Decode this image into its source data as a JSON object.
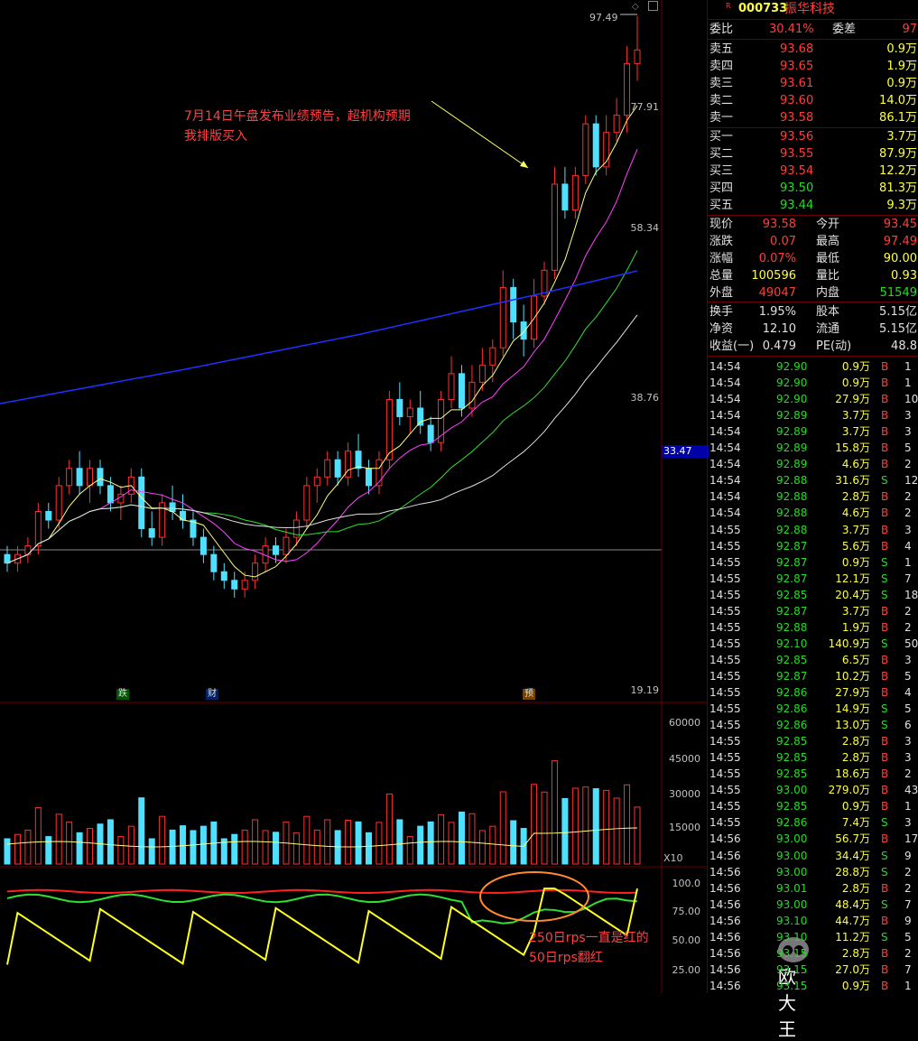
{
  "stock": {
    "code": "000733",
    "name": "振华科技",
    "tag": "R"
  },
  "price_axis": [
    "77.91",
    "58.34",
    "38.76",
    "19.19"
  ],
  "current_marker": "33.47",
  "high_label": "97.49",
  "volume_axis": [
    "60000",
    "45000",
    "30000",
    "15000"
  ],
  "volume_unit": "X10",
  "rps_axis": [
    "100.0",
    "75.00",
    "50.00",
    "25.00"
  ],
  "annotations": {
    "buy_line1": "7月14日午盘发布业绩预告，超机构预期",
    "buy_line2": "我排版买入",
    "rps_line1": "250日rps一直是红的",
    "rps_line2": "50日rps翻红"
  },
  "event_tags": [
    "跌",
    "财",
    "预"
  ],
  "watermark": "欧大王",
  "quote": {
    "wb_label": "委比",
    "wb_val": "30.41%",
    "wc_label": "委差",
    "wc_val": "97",
    "asks": [
      {
        "label": "卖五",
        "price": "93.68",
        "vol": "0.9万"
      },
      {
        "label": "卖四",
        "price": "93.65",
        "vol": "1.9万"
      },
      {
        "label": "卖三",
        "price": "93.61",
        "vol": "0.9万"
      },
      {
        "label": "卖二",
        "price": "93.60",
        "vol": "14.0万"
      },
      {
        "label": "卖一",
        "price": "93.58",
        "vol": "86.1万"
      }
    ],
    "bids": [
      {
        "label": "买一",
        "price": "93.56",
        "vol": "3.7万"
      },
      {
        "label": "买二",
        "price": "93.55",
        "vol": "87.9万"
      },
      {
        "label": "买三",
        "price": "93.54",
        "vol": "12.2万"
      },
      {
        "label": "买四",
        "price": "93.50",
        "vol": "81.3万"
      },
      {
        "label": "买五",
        "price": "93.44",
        "vol": "9.3万"
      }
    ],
    "stats": [
      {
        "l1": "现价",
        "v1": "93.58",
        "c1": "red",
        "l2": "今开",
        "v2": "93.45",
        "c2": "red"
      },
      {
        "l1": "涨跌",
        "v1": "0.07",
        "c1": "red",
        "l2": "最高",
        "v2": "97.49",
        "c2": "red"
      },
      {
        "l1": "涨幅",
        "v1": "0.07%",
        "c1": "red",
        "l2": "最低",
        "v2": "90.00",
        "c2": "yel"
      },
      {
        "l1": "总量",
        "v1": "100596",
        "c1": "yel",
        "l2": "量比",
        "v2": "0.93",
        "c2": "yel"
      },
      {
        "l1": "外盘",
        "v1": "49047",
        "c1": "red",
        "l2": "内盘",
        "v2": "51549",
        "c2": "grn"
      }
    ],
    "fin": [
      {
        "l1": "换手",
        "v1": "1.95%",
        "l2": "股本",
        "v2": "5.15亿"
      },
      {
        "l1": "净资",
        "v1": "12.10",
        "l2": "流通",
        "v2": "5.15亿"
      },
      {
        "l1": "收益(一)",
        "v1": "0.479",
        "l2": "PE(动)",
        "v2": "48.8"
      }
    ]
  },
  "ticks": [
    [
      "14:54",
      "92.90",
      "0.9万",
      "B",
      "1"
    ],
    [
      "14:54",
      "92.90",
      "0.9万",
      "B",
      "1"
    ],
    [
      "14:54",
      "92.90",
      "27.9万",
      "B",
      "10"
    ],
    [
      "14:54",
      "92.89",
      "3.7万",
      "B",
      "3"
    ],
    [
      "14:54",
      "92.89",
      "3.7万",
      "B",
      "3"
    ],
    [
      "14:54",
      "92.89",
      "15.8万",
      "B",
      "5"
    ],
    [
      "14:54",
      "92.89",
      "4.6万",
      "B",
      "2"
    ],
    [
      "14:54",
      "92.88",
      "31.6万",
      "S",
      "12"
    ],
    [
      "14:54",
      "92.88",
      "2.8万",
      "B",
      "2"
    ],
    [
      "14:54",
      "92.88",
      "4.6万",
      "B",
      "2"
    ],
    [
      "14:55",
      "92.88",
      "3.7万",
      "B",
      "3"
    ],
    [
      "14:55",
      "92.87",
      "5.6万",
      "B",
      "4"
    ],
    [
      "14:55",
      "92.87",
      "0.9万",
      "S",
      "1"
    ],
    [
      "14:55",
      "92.87",
      "12.1万",
      "S",
      "7"
    ],
    [
      "14:55",
      "92.85",
      "20.4万",
      "S",
      "18"
    ],
    [
      "14:55",
      "92.87",
      "3.7万",
      "B",
      "2"
    ],
    [
      "14:55",
      "92.88",
      "1.9万",
      "B",
      "2"
    ],
    [
      "14:55",
      "92.10",
      "140.9万",
      "S",
      "50"
    ],
    [
      "14:55",
      "92.85",
      "6.5万",
      "B",
      "3"
    ],
    [
      "14:55",
      "92.87",
      "10.2万",
      "B",
      "5"
    ],
    [
      "14:55",
      "92.86",
      "27.9万",
      "B",
      "4"
    ],
    [
      "14:55",
      "92.86",
      "14.9万",
      "S",
      "5"
    ],
    [
      "14:55",
      "92.86",
      "13.0万",
      "S",
      "6"
    ],
    [
      "14:55",
      "92.85",
      "2.8万",
      "B",
      "3"
    ],
    [
      "14:55",
      "92.85",
      "2.8万",
      "B",
      "3"
    ],
    [
      "14:55",
      "92.85",
      "18.6万",
      "B",
      "2"
    ],
    [
      "14:55",
      "93.00",
      "279.0万",
      "B",
      "43"
    ],
    [
      "14:55",
      "92.85",
      "0.9万",
      "B",
      "1"
    ],
    [
      "14:55",
      "92.86",
      "7.4万",
      "S",
      "3"
    ],
    [
      "14:56",
      "93.00",
      "56.7万",
      "B",
      "17"
    ],
    [
      "14:56",
      "93.00",
      "34.4万",
      "S",
      "9"
    ],
    [
      "14:56",
      "93.00",
      "28.8万",
      "S",
      "2"
    ],
    [
      "14:56",
      "93.01",
      "2.8万",
      "B",
      "2"
    ],
    [
      "14:56",
      "93.00",
      "48.4万",
      "S",
      "7"
    ],
    [
      "14:56",
      "93.10",
      "44.7万",
      "B",
      "9"
    ],
    [
      "14:56",
      "93.10",
      "11.2万",
      "S",
      "5"
    ],
    [
      "14:56",
      "93.15",
      "2.8万",
      "B",
      "2"
    ],
    [
      "14:56",
      "93.15",
      "27.0万",
      "B",
      "7"
    ],
    [
      "14:56",
      "93.15",
      "0.9万",
      "B",
      "1"
    ]
  ],
  "chart_data": {
    "type": "candlestick",
    "price_range": [
      19.19,
      97.49
    ],
    "ohlc": [
      [
        35,
        36,
        33,
        34
      ],
      [
        34,
        36,
        33,
        35
      ],
      [
        35,
        37,
        34,
        36
      ],
      [
        36,
        41,
        35,
        40
      ],
      [
        40,
        41,
        38,
        39
      ],
      [
        39,
        44,
        38,
        43
      ],
      [
        43,
        46,
        42,
        45
      ],
      [
        45,
        47,
        42,
        43
      ],
      [
        43,
        46,
        41,
        45
      ],
      [
        45,
        46,
        42,
        43
      ],
      [
        43,
        44,
        40,
        41
      ],
      [
        41,
        43,
        39,
        42
      ],
      [
        42,
        45,
        41,
        44
      ],
      [
        44,
        45,
        37,
        38
      ],
      [
        38,
        40,
        36,
        37
      ],
      [
        37,
        42,
        36,
        41
      ],
      [
        41,
        43,
        39,
        40
      ],
      [
        40,
        42,
        38,
        39
      ],
      [
        39,
        40,
        36,
        37
      ],
      [
        37,
        38,
        34,
        35
      ],
      [
        35,
        36,
        32,
        33
      ],
      [
        33,
        34,
        31,
        32
      ],
      [
        32,
        33,
        30,
        31
      ],
      [
        31,
        33,
        30,
        32
      ],
      [
        32,
        35,
        31,
        34
      ],
      [
        34,
        37,
        33,
        36
      ],
      [
        36,
        37,
        34,
        35
      ],
      [
        35,
        38,
        34,
        37
      ],
      [
        37,
        40,
        36,
        39
      ],
      [
        39,
        44,
        38,
        43
      ],
      [
        43,
        45,
        41,
        44
      ],
      [
        44,
        47,
        43,
        46
      ],
      [
        46,
        47,
        43,
        44
      ],
      [
        44,
        48,
        43,
        47
      ],
      [
        47,
        49,
        44,
        45
      ],
      [
        45,
        46,
        42,
        43
      ],
      [
        43,
        47,
        42,
        46
      ],
      [
        46,
        54,
        45,
        53
      ],
      [
        53,
        55,
        50,
        51
      ],
      [
        51,
        53,
        49,
        52
      ],
      [
        52,
        54,
        49,
        50
      ],
      [
        50,
        51,
        47,
        48
      ],
      [
        48,
        54,
        47,
        53
      ],
      [
        53,
        58,
        52,
        56
      ],
      [
        56,
        57,
        51,
        52
      ],
      [
        52,
        57,
        51,
        55
      ],
      [
        55,
        59,
        54,
        57
      ],
      [
        57,
        60,
        55,
        59
      ],
      [
        59,
        68,
        58,
        66
      ],
      [
        66,
        67,
        60,
        62
      ],
      [
        62,
        64,
        58,
        60
      ],
      [
        60,
        67,
        59,
        65
      ],
      [
        65,
        69,
        64,
        68
      ],
      [
        68,
        80,
        67,
        78
      ],
      [
        78,
        80,
        74,
        75
      ],
      [
        75,
        80,
        74,
        79
      ],
      [
        79,
        86,
        78,
        85
      ],
      [
        85,
        86,
        79,
        80
      ],
      [
        80,
        86,
        79,
        84
      ],
      [
        84,
        88,
        83,
        86
      ],
      [
        86,
        94,
        84,
        92
      ],
      [
        92,
        97.49,
        90,
        93.58
      ]
    ]
  }
}
